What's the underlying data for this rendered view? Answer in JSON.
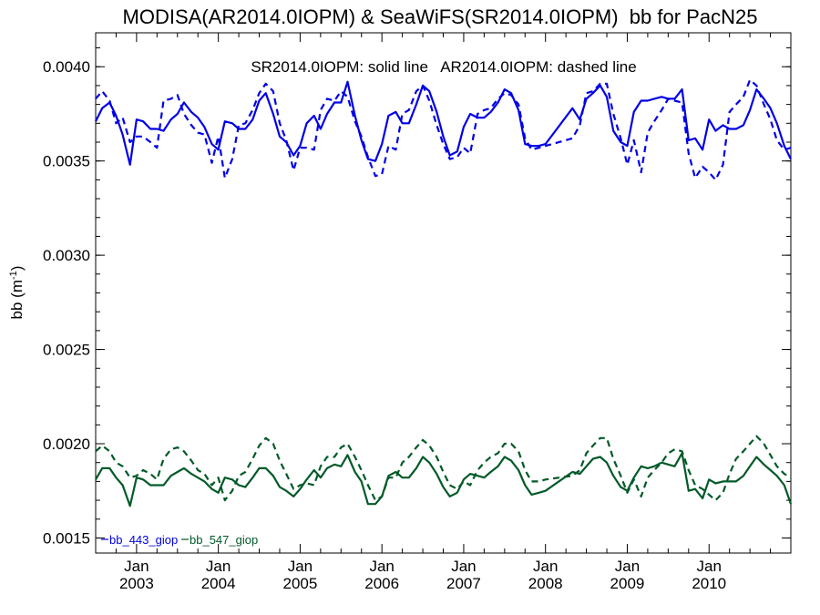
{
  "chart_data": {
    "type": "line",
    "title": "MODISA(AR2014.0IOPM) & SeaWiFS(SR2014.0IOPM)  bb for PacN25",
    "annotation": "SR2014.0IOPM: solid line   AR2014.0IOPM: dashed line",
    "ylabel_main": "bb (m",
    "ylabel_sup": "-1",
    "ylabel_close": ")",
    "ylim": [
      0.00142,
      0.00418
    ],
    "xlim": [
      2002.5,
      2011.0
    ],
    "y_ticks": [
      "0.0015",
      "0.0020",
      "0.0025",
      "0.0030",
      "0.0035",
      "0.0040"
    ],
    "x_ticks": [
      {
        "month": "Jan",
        "year": "2003"
      },
      {
        "month": "Jan",
        "year": "2004"
      },
      {
        "month": "Jan",
        "year": "2005"
      },
      {
        "month": "Jan",
        "year": "2006"
      },
      {
        "month": "Jan",
        "year": "2007"
      },
      {
        "month": "Jan",
        "year": "2008"
      },
      {
        "month": "Jan",
        "year": "2009"
      },
      {
        "month": "Jan",
        "year": "2010"
      }
    ],
    "legend": [
      {
        "label": "bb_443_giop",
        "color": "#0000e6"
      },
      {
        "label": "bb_547_giop",
        "color": "#005a28"
      }
    ],
    "series": [
      {
        "name": "bb_443_giop",
        "style": "solid",
        "color": "#0000e6",
        "x": [
          2002.5,
          2002.58,
          2002.67,
          2002.75,
          2002.83,
          2002.92,
          2003.0,
          2003.08,
          2003.17,
          2003.25,
          2003.33,
          2003.42,
          2003.5,
          2003.58,
          2003.67,
          2003.75,
          2003.83,
          2003.92,
          2004.0,
          2004.08,
          2004.17,
          2004.25,
          2004.33,
          2004.42,
          2004.5,
          2004.58,
          2004.67,
          2004.75,
          2004.83,
          2004.92,
          2005.0,
          2005.08,
          2005.17,
          2005.25,
          2005.33,
          2005.42,
          2005.5,
          2005.58,
          2005.67,
          2005.75,
          2005.83,
          2005.92,
          2006.0,
          2006.08,
          2006.17,
          2006.25,
          2006.33,
          2006.42,
          2006.5,
          2006.58,
          2006.67,
          2006.75,
          2006.83,
          2006.92,
          2007.0,
          2007.08,
          2007.17,
          2007.25,
          2007.33,
          2007.42,
          2007.5,
          2007.58,
          2007.67,
          2007.75,
          2007.83,
          2007.92,
          2008.0,
          2008.33,
          2008.42,
          2008.5,
          2008.58,
          2008.67,
          2008.75,
          2008.83,
          2008.92,
          2009.0,
          2009.08,
          2009.17,
          2009.25,
          2009.33,
          2009.42,
          2009.5,
          2009.58,
          2009.67,
          2009.75,
          2009.83,
          2009.92,
          2010.0,
          2010.08,
          2010.17,
          2010.25,
          2010.33,
          2010.42,
          2010.5,
          2010.58,
          2010.67,
          2010.75,
          2010.83,
          2010.92,
          2011.0
        ],
        "y": [
          0.00371,
          0.00378,
          0.00381,
          0.00374,
          0.00364,
          0.00348,
          0.00372,
          0.00371,
          0.00367,
          0.00367,
          0.00366,
          0.00372,
          0.00375,
          0.00381,
          0.00376,
          0.00373,
          0.00368,
          0.00359,
          0.00356,
          0.00371,
          0.0037,
          0.00367,
          0.00367,
          0.00372,
          0.00382,
          0.00386,
          0.00375,
          0.00363,
          0.0036,
          0.00353,
          0.00358,
          0.0037,
          0.00374,
          0.00367,
          0.00375,
          0.00381,
          0.00381,
          0.00392,
          0.00374,
          0.00361,
          0.00351,
          0.0035,
          0.00359,
          0.00374,
          0.00376,
          0.0037,
          0.0037,
          0.0038,
          0.0039,
          0.00387,
          0.00376,
          0.00363,
          0.00353,
          0.00355,
          0.00368,
          0.00375,
          0.00373,
          0.00373,
          0.00376,
          0.00381,
          0.00388,
          0.00386,
          0.00377,
          0.00359,
          0.00358,
          0.00358,
          0.00359,
          0.00378,
          0.00372,
          0.00383,
          0.00386,
          0.0039,
          0.00384,
          0.00366,
          0.0036,
          0.00358,
          0.00376,
          0.00382,
          0.00382,
          0.00383,
          0.00384,
          0.00383,
          0.00383,
          0.00388,
          0.00361,
          0.00362,
          0.00356,
          0.00372,
          0.00366,
          0.00369,
          0.00367,
          0.00367,
          0.00369,
          0.00377,
          0.00388,
          0.00383,
          0.00378,
          0.0037,
          0.00358,
          0.00351
        ]
      },
      {
        "name": "bb_443_giop",
        "style": "dashed",
        "color": "#0000e6",
        "x": [
          2002.5,
          2002.58,
          2002.67,
          2002.75,
          2002.83,
          2002.92,
          2003.0,
          2003.08,
          2003.17,
          2003.25,
          2003.33,
          2003.42,
          2003.5,
          2003.58,
          2003.67,
          2003.75,
          2003.83,
          2003.92,
          2004.0,
          2004.08,
          2004.17,
          2004.25,
          2004.33,
          2004.42,
          2004.5,
          2004.58,
          2004.67,
          2004.75,
          2004.83,
          2004.92,
          2005.0,
          2005.08,
          2005.17,
          2005.25,
          2005.33,
          2005.42,
          2005.5,
          2005.58,
          2005.67,
          2005.75,
          2005.83,
          2005.92,
          2006.0,
          2006.08,
          2006.17,
          2006.25,
          2006.33,
          2006.42,
          2006.5,
          2006.58,
          2006.67,
          2006.75,
          2006.83,
          2006.92,
          2007.0,
          2007.08,
          2007.17,
          2007.25,
          2007.33,
          2007.42,
          2007.5,
          2007.58,
          2007.67,
          2007.75,
          2007.83,
          2007.92,
          2008.0,
          2008.33,
          2008.42,
          2008.5,
          2008.58,
          2008.67,
          2008.75,
          2008.83,
          2008.92,
          2009.0,
          2009.08,
          2009.17,
          2009.25,
          2009.33,
          2009.42,
          2009.5,
          2009.58,
          2009.67,
          2009.75,
          2009.83,
          2009.92,
          2010.0,
          2010.08,
          2010.17,
          2010.25,
          2010.33,
          2010.42,
          2010.5,
          2010.58,
          2010.67,
          2010.75,
          2010.83,
          2010.92,
          2011.0
        ],
        "y": [
          0.00383,
          0.00387,
          0.00382,
          0.0037,
          0.00373,
          0.0036,
          0.00363,
          0.00363,
          0.0036,
          0.00357,
          0.00382,
          0.00383,
          0.00385,
          0.00375,
          0.00369,
          0.00365,
          0.00364,
          0.00349,
          0.00363,
          0.00341,
          0.00351,
          0.00369,
          0.0037,
          0.00377,
          0.00386,
          0.00391,
          0.00387,
          0.0037,
          0.00361,
          0.00345,
          0.00357,
          0.00357,
          0.00356,
          0.00377,
          0.00383,
          0.00382,
          0.00387,
          0.00384,
          0.00371,
          0.00363,
          0.00352,
          0.00342,
          0.00343,
          0.00358,
          0.00356,
          0.00375,
          0.00377,
          0.00387,
          0.0039,
          0.00382,
          0.00369,
          0.00359,
          0.00351,
          0.00352,
          0.00357,
          0.00354,
          0.00375,
          0.00377,
          0.00378,
          0.00383,
          0.00386,
          0.00385,
          0.0038,
          0.00362,
          0.00356,
          0.00357,
          0.00358,
          0.00362,
          0.00369,
          0.00386,
          0.00387,
          0.00391,
          0.00391,
          0.00375,
          0.00362,
          0.00348,
          0.00361,
          0.00344,
          0.00365,
          0.00371,
          0.00377,
          0.00383,
          0.00382,
          0.00381,
          0.00354,
          0.00341,
          0.00347,
          0.00344,
          0.0034,
          0.00348,
          0.00376,
          0.0038,
          0.00384,
          0.00393,
          0.0039,
          0.0038,
          0.00372,
          0.00361,
          0.00356,
          0.00357
        ]
      },
      {
        "name": "bb_547_giop",
        "style": "solid",
        "color": "#005a28",
        "x": [
          2002.5,
          2002.58,
          2002.67,
          2002.75,
          2002.83,
          2002.92,
          2003.0,
          2003.08,
          2003.17,
          2003.25,
          2003.33,
          2003.42,
          2003.5,
          2003.58,
          2003.67,
          2003.75,
          2003.83,
          2003.92,
          2004.0,
          2004.08,
          2004.17,
          2004.25,
          2004.33,
          2004.42,
          2004.5,
          2004.58,
          2004.67,
          2004.75,
          2004.83,
          2004.92,
          2005.0,
          2005.08,
          2005.17,
          2005.25,
          2005.33,
          2005.42,
          2005.5,
          2005.58,
          2005.67,
          2005.75,
          2005.83,
          2005.92,
          2006.0,
          2006.08,
          2006.17,
          2006.25,
          2006.33,
          2006.42,
          2006.5,
          2006.58,
          2006.67,
          2006.75,
          2006.83,
          2006.92,
          2007.0,
          2007.08,
          2007.17,
          2007.25,
          2007.33,
          2007.42,
          2007.5,
          2007.58,
          2007.67,
          2007.75,
          2007.83,
          2007.92,
          2008.0,
          2008.33,
          2008.42,
          2008.5,
          2008.58,
          2008.67,
          2008.75,
          2008.83,
          2008.92,
          2009.0,
          2009.08,
          2009.17,
          2009.25,
          2009.33,
          2009.42,
          2009.5,
          2009.58,
          2009.67,
          2009.75,
          2009.83,
          2009.92,
          2010.0,
          2010.08,
          2010.17,
          2010.25,
          2010.33,
          2010.42,
          2010.5,
          2010.58,
          2010.67,
          2010.75,
          2010.83,
          2010.92,
          2011.0
        ],
        "y": [
          0.00181,
          0.00187,
          0.00187,
          0.00182,
          0.00178,
          0.00167,
          0.00182,
          0.00181,
          0.00178,
          0.00178,
          0.00178,
          0.00183,
          0.00185,
          0.00187,
          0.00184,
          0.00182,
          0.0018,
          0.00176,
          0.00174,
          0.00182,
          0.00181,
          0.00178,
          0.00177,
          0.00182,
          0.00187,
          0.00187,
          0.00183,
          0.00177,
          0.00175,
          0.00172,
          0.00176,
          0.00181,
          0.00186,
          0.00182,
          0.00187,
          0.00189,
          0.00188,
          0.00194,
          0.00185,
          0.0018,
          0.00168,
          0.00168,
          0.00172,
          0.00183,
          0.00185,
          0.00182,
          0.00182,
          0.00187,
          0.00193,
          0.0019,
          0.00184,
          0.00177,
          0.00172,
          0.00174,
          0.00181,
          0.00184,
          0.00183,
          0.00182,
          0.00185,
          0.00188,
          0.00193,
          0.00191,
          0.00186,
          0.00178,
          0.00173,
          0.00174,
          0.00175,
          0.00185,
          0.00184,
          0.00188,
          0.00192,
          0.00193,
          0.0019,
          0.00183,
          0.00177,
          0.00175,
          0.00182,
          0.00188,
          0.00187,
          0.00188,
          0.0019,
          0.00189,
          0.00188,
          0.00195,
          0.00175,
          0.00176,
          0.00171,
          0.00181,
          0.00179,
          0.0018,
          0.0018,
          0.0018,
          0.00183,
          0.00188,
          0.00193,
          0.00189,
          0.00186,
          0.00183,
          0.00178,
          0.00168
        ]
      },
      {
        "name": "bb_547_giop",
        "style": "dashed",
        "color": "#005a28",
        "x": [
          2002.5,
          2002.58,
          2002.67,
          2002.75,
          2002.83,
          2002.92,
          2003.0,
          2003.08,
          2003.17,
          2003.25,
          2003.33,
          2003.42,
          2003.5,
          2003.58,
          2003.67,
          2003.75,
          2003.83,
          2003.92,
          2004.0,
          2004.08,
          2004.17,
          2004.25,
          2004.33,
          2004.42,
          2004.5,
          2004.58,
          2004.67,
          2004.75,
          2004.83,
          2004.92,
          2005.0,
          2005.08,
          2005.17,
          2005.25,
          2005.33,
          2005.42,
          2005.5,
          2005.58,
          2005.67,
          2005.75,
          2005.83,
          2005.92,
          2006.0,
          2006.08,
          2006.17,
          2006.25,
          2006.33,
          2006.42,
          2006.5,
          2006.58,
          2006.67,
          2006.75,
          2006.83,
          2006.92,
          2007.0,
          2007.08,
          2007.17,
          2007.25,
          2007.33,
          2007.42,
          2007.5,
          2007.58,
          2007.67,
          2007.75,
          2007.83,
          2007.92,
          2008.0,
          2008.33,
          2008.42,
          2008.5,
          2008.58,
          2008.67,
          2008.75,
          2008.83,
          2008.92,
          2009.0,
          2009.08,
          2009.17,
          2009.25,
          2009.33,
          2009.42,
          2009.5,
          2009.58,
          2009.67,
          2009.75,
          2009.83,
          2009.92,
          2010.0,
          2010.08,
          2010.17,
          2010.25,
          2010.33,
          2010.42,
          2010.5,
          2010.58,
          2010.67,
          2010.75,
          2010.83,
          2010.92,
          2011.0
        ],
        "y": [
          0.00196,
          0.00199,
          0.00196,
          0.0019,
          0.00188,
          0.00182,
          0.00183,
          0.00186,
          0.00184,
          0.00181,
          0.00192,
          0.00197,
          0.00198,
          0.00196,
          0.00191,
          0.00186,
          0.00184,
          0.00178,
          0.00182,
          0.0017,
          0.00175,
          0.00183,
          0.00185,
          0.00192,
          0.00199,
          0.00203,
          0.002,
          0.00191,
          0.00184,
          0.00176,
          0.00178,
          0.00179,
          0.00178,
          0.00188,
          0.00193,
          0.00193,
          0.00198,
          0.002,
          0.00193,
          0.00186,
          0.00178,
          0.0017,
          0.00172,
          0.00182,
          0.00182,
          0.0019,
          0.00193,
          0.00198,
          0.00202,
          0.00199,
          0.00193,
          0.00185,
          0.00178,
          0.00176,
          0.0018,
          0.00178,
          0.00186,
          0.0019,
          0.00193,
          0.00195,
          0.002,
          0.002,
          0.00196,
          0.00186,
          0.0018,
          0.0018,
          0.00181,
          0.00183,
          0.00186,
          0.00195,
          0.00199,
          0.00203,
          0.00203,
          0.00192,
          0.00183,
          0.00174,
          0.00181,
          0.00172,
          0.00182,
          0.00186,
          0.0019,
          0.00195,
          0.00197,
          0.00196,
          0.00186,
          0.00178,
          0.00176,
          0.00173,
          0.0017,
          0.00174,
          0.00184,
          0.00192,
          0.00196,
          0.002,
          0.00204,
          0.002,
          0.00194,
          0.00188,
          0.00184,
          0.00182
        ]
      }
    ]
  }
}
